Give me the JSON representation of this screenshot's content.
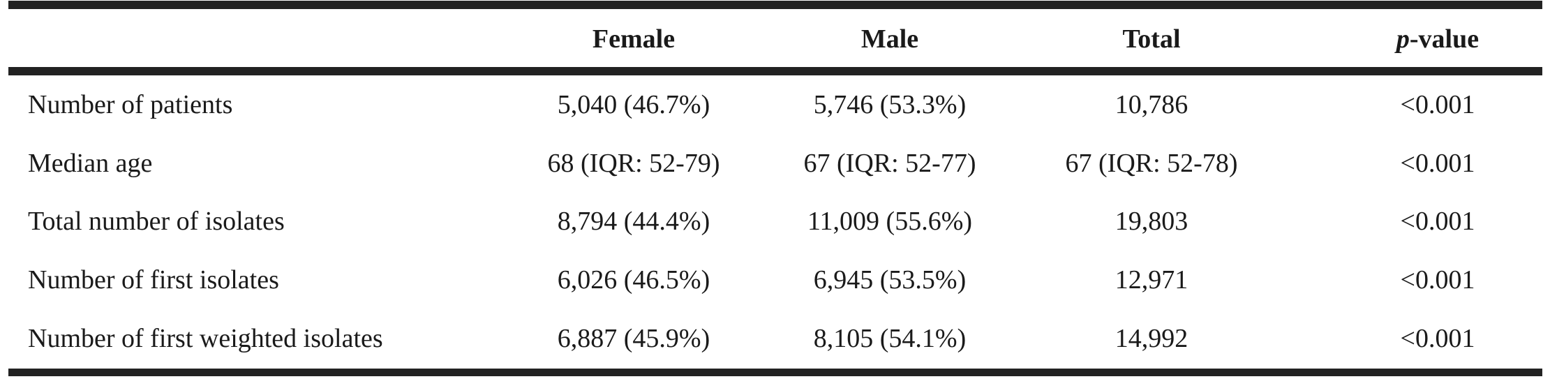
{
  "header": {
    "col_female": "Female",
    "col_male": "Male",
    "col_total": "Total",
    "col_pvalue_italic": "p",
    "col_pvalue_rest": "-value"
  },
  "rows": [
    {
      "label": "Number of patients",
      "female": "5,040 (46.7%)",
      "male": "5,746 (53.3%)",
      "total": "10,786",
      "pvalue": "<0.001"
    },
    {
      "label": "Median age",
      "female": "68 (IQR: 52-79)",
      "male": "67 (IQR: 52-77)",
      "total": "67 (IQR: 52-78)",
      "pvalue": "<0.001"
    },
    {
      "label": "Total number of isolates",
      "female": "8,794 (44.4%)",
      "male": "11,009 (55.6%)",
      "total": "19,803",
      "pvalue": "<0.001"
    },
    {
      "label": "Number of first isolates",
      "female": "6,026 (46.5%)",
      "male": "6,945 (53.5%)",
      "total": "12,971",
      "pvalue": "<0.001"
    },
    {
      "label": "Number of first weighted isolates",
      "female": "6,887 (45.9%)",
      "male": "8,105 (54.1%)",
      "total": "14,992",
      "pvalue": "<0.001"
    }
  ]
}
